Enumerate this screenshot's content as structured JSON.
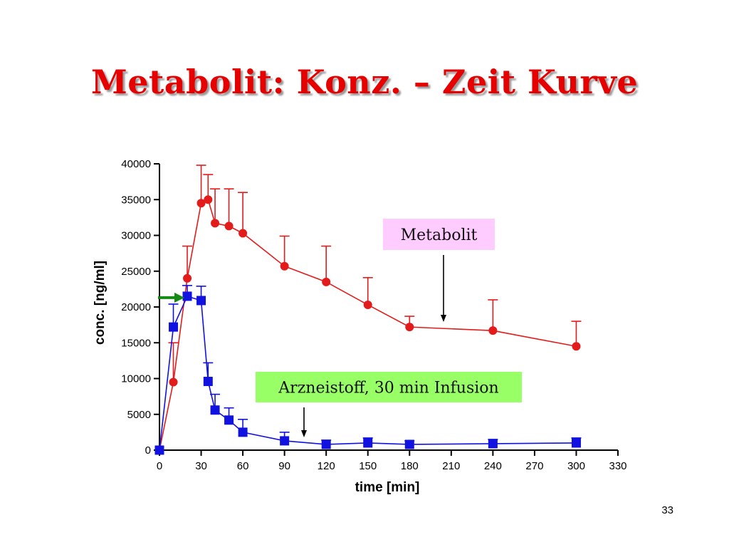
{
  "slide": {
    "title": "Metabolit: Konz. – Zeit Kurve",
    "page_number": "33"
  },
  "chart_data": {
    "type": "line",
    "xlabel": "time [min]",
    "ylabel": "conc. [ng/ml]",
    "xlim": [
      0,
      330
    ],
    "ylim": [
      0,
      40000
    ],
    "xticks": [
      0,
      30,
      60,
      90,
      120,
      150,
      180,
      210,
      240,
      270,
      300,
      330
    ],
    "yticks": [
      0,
      5000,
      10000,
      15000,
      20000,
      25000,
      30000,
      35000,
      40000
    ],
    "grid": false,
    "series": [
      {
        "name": "Metabolit",
        "color": "#e31b1b",
        "marker": "circle",
        "x": [
          0,
          10,
          20,
          30,
          35,
          40,
          50,
          60,
          90,
          120,
          150,
          180,
          240,
          300
        ],
        "y": [
          0,
          9500,
          24000,
          34500,
          35000,
          31700,
          31300,
          30300,
          25700,
          23500,
          20300,
          17200,
          16700,
          14500
        ],
        "error": [
          0,
          5500,
          4500,
          5300,
          3500,
          4800,
          5200,
          5700,
          4200,
          5000,
          3800,
          1500,
          4300,
          3500
        ]
      },
      {
        "name": "Arzneistoff, 30 min Infusion",
        "color": "#1212e0",
        "marker": "square",
        "x": [
          0,
          10,
          20,
          30,
          35,
          40,
          50,
          60,
          90,
          120,
          150,
          180,
          240,
          300
        ],
        "y": [
          0,
          17200,
          21500,
          20900,
          9600,
          5600,
          4200,
          2500,
          1300,
          800,
          1000,
          800,
          900,
          1000
        ],
        "error": [
          0,
          3200,
          1500,
          2000,
          2600,
          2200,
          1700,
          1800,
          1200,
          600,
          700,
          500,
          600,
          700
        ]
      }
    ],
    "annotations": [
      {
        "text": "Metabolit",
        "background": "#ffccff",
        "target_series": "Metabolit"
      },
      {
        "text": "Arzneistoff, 30 min Infusion",
        "background": "#99ff66",
        "target_series": "Arzneistoff, 30 min Infusion"
      }
    ],
    "infusion_marker": {
      "color": "#138a13",
      "at_x": 20
    }
  }
}
